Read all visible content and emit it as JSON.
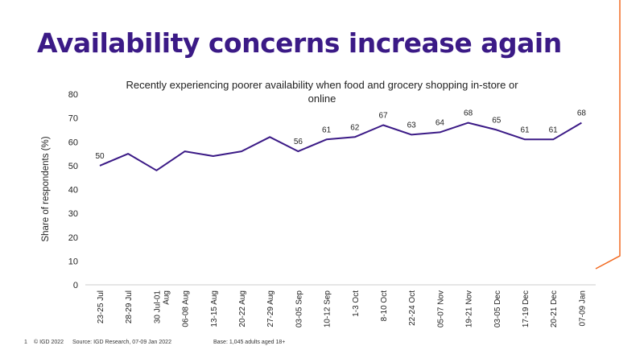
{
  "slide": {
    "title": "Availability concerns increase again",
    "accent_color": "#f26a21",
    "title_color": "#3b1a86"
  },
  "footer": {
    "page_number": "1",
    "copyright": "© IGD 2022",
    "source": "Source: IGD Research, 07-09 Jan 2022",
    "base": "Base: 1,045 adults aged 18+"
  },
  "chart_data": {
    "type": "line",
    "title_lines": [
      "Recently experiencing poorer availability when food and grocery shopping in-store or",
      "online"
    ],
    "ylabel": "Share of respondents (%)",
    "xlabel": "",
    "ylim": [
      0,
      80
    ],
    "yticks": [
      0,
      10,
      20,
      30,
      40,
      50,
      60,
      70,
      80
    ],
    "grid": false,
    "categories": [
      "23-25 Jul",
      "28-29 Jul",
      "30 Jul-01 Aug",
      "06-08 Aug",
      "13-15 Aug",
      "20-22 Aug",
      "27-29 Aug",
      "03-05 Sep",
      "10-12 Sep",
      "1-3 Oct",
      "8-10 Oct",
      "22-24 Oct",
      "05-07 Nov",
      "19-21 Nov",
      "03-05 Dec",
      "17-19 Dec",
      "20-21 Dec",
      "07-09 Jan"
    ],
    "series": [
      {
        "values": [
          50,
          55,
          48,
          56,
          54,
          56,
          62,
          56,
          61,
          62,
          67,
          63,
          64,
          68,
          65,
          61,
          61,
          68
        ],
        "labels": [
          "50",
          "",
          "",
          "",
          "",
          "",
          "",
          "56",
          "61",
          "62",
          "67",
          "63",
          "64",
          "68",
          "65",
          "61",
          "61",
          "68"
        ],
        "color": "#3b1a86"
      }
    ]
  }
}
